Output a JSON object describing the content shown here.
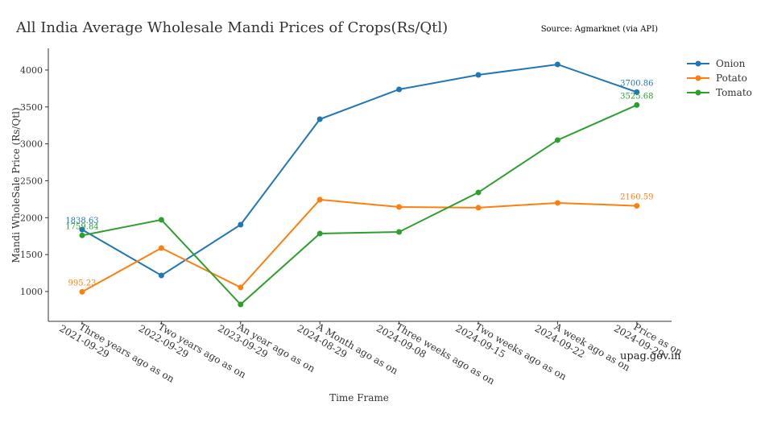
{
  "chart_data": {
    "type": "line",
    "title": "All India Average Wholesale Mandi Prices of Crops(Rs/Qtl)",
    "source": "Source: Agmarknet (via API)",
    "watermark": "upag.gov.in",
    "xlabel": "Time Frame",
    "ylabel": "Mandi WholeSale Price (Rs/Qtl)",
    "ylim": [
      596,
      4294
    ],
    "yticks": [
      1000,
      1500,
      2000,
      2500,
      3000,
      3500,
      4000
    ],
    "categories": [
      [
        "Three years ago as on",
        "2021-09-29"
      ],
      [
        "Two years ago as on",
        "2022-09-29"
      ],
      [
        "An year ago as on",
        "2023-09-29"
      ],
      [
        "A Month ago as on",
        "2024-08-29"
      ],
      [
        "Three weeks ago as on",
        "2024-09-08"
      ],
      [
        "Two weeks ago as on",
        "2024-09-15"
      ],
      [
        "A week ago as on",
        "2024-09-22"
      ],
      [
        "Price as on",
        "2024-09-29"
      ]
    ],
    "legend_position": "top-right",
    "series": [
      {
        "name": "Onion",
        "color": "#1f77b4",
        "values": [
          1838.63,
          1218,
          1905,
          3334,
          3738,
          3934,
          4076,
          3700.86
        ],
        "labels": {
          "0": "1838.63",
          "7": "3700.86"
        }
      },
      {
        "name": "Potato",
        "color": "#ff7f0e",
        "values": [
          995.23,
          1589,
          1055,
          2244,
          2145,
          2135,
          2200,
          2160.59
        ],
        "labels": {
          "0": "995.23",
          "7": "2160.59"
        }
      },
      {
        "name": "Tomato",
        "color": "#2ca02c",
        "values": [
          1759.84,
          1971,
          825,
          1785,
          1807,
          2342,
          3051,
          3525.68
        ],
        "labels": {
          "0": "1759.84",
          "7": "3525.68"
        }
      }
    ]
  }
}
